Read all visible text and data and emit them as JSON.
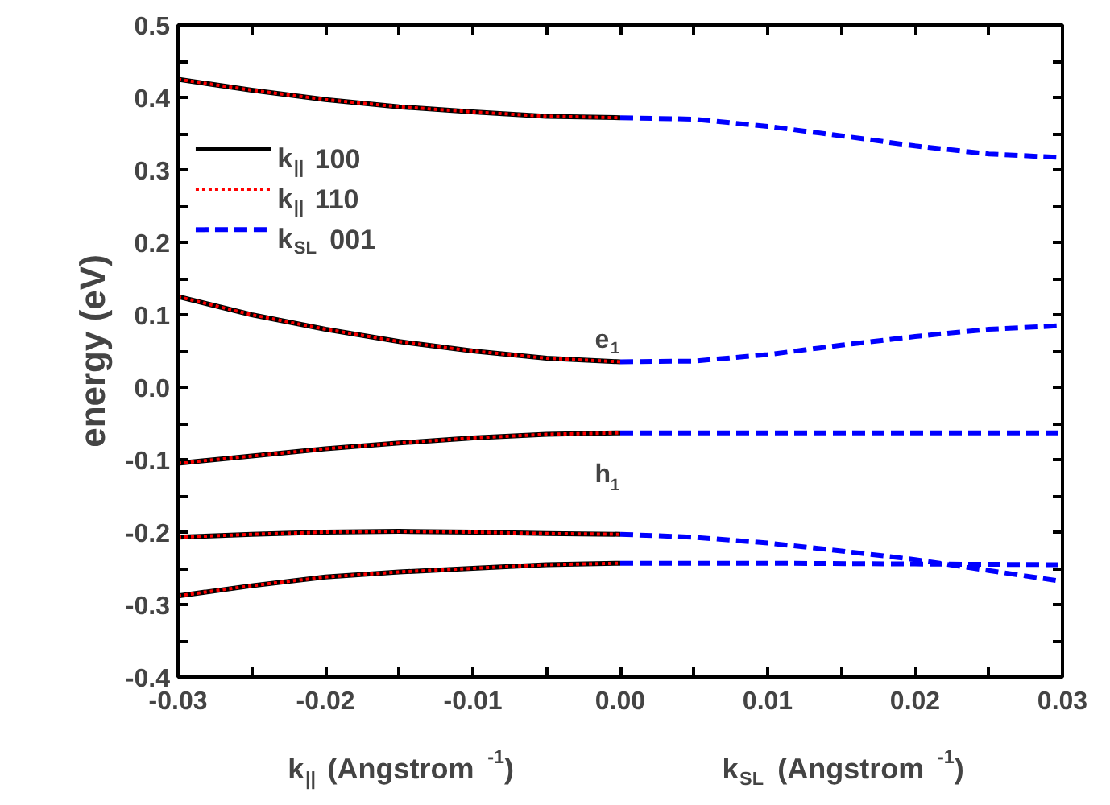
{
  "chart_data": {
    "type": "line",
    "xlabel": "k$_{||}$ (Angstrom$^{-1}$)",
    "ylabel": "energy (eV)",
    "annotations": [
      "k$_{SL}$ (Angstrom$^{-1}$)",
      {
        "text": "e$_{1}$",
        "x": 0,
        "y": 0.035
      },
      {
        "text": "h$_{1}$",
        "x": 0,
        "y": -0.063
      }
    ],
    "xlim": [
      -0.03,
      0.03
    ],
    "xticks": [
      -0.03,
      {
        "value": -0.025,
        "label": null
      },
      -0.02,
      {
        "value": -0.015,
        "label": null
      },
      -0.01,
      {
        "value": -0.005,
        "label": null
      },
      {
        "value": 0,
        "label": "0.00"
      },
      {
        "value": 0.005,
        "label": null
      },
      0.01,
      {
        "value": 0.015,
        "label": null
      },
      0.02,
      {
        "value": 0.025,
        "label": null
      },
      0.03
    ],
    "ylim": [
      -0.4,
      0.5
    ],
    "yticks": [
      -0.4,
      {
        "value": -0.35,
        "label": null
      },
      -0.3,
      {
        "value": -0.25,
        "label": null
      },
      -0.2,
      {
        "value": -0.15,
        "label": null
      },
      -0.1,
      {
        "value": -0.05,
        "label": null
      },
      {
        "value": 0,
        "label": "0.0"
      },
      {
        "value": 0.05,
        "label": null
      },
      0.1,
      {
        "value": 0.15,
        "label": null
      },
      0.2,
      {
        "value": 0.25,
        "label": null
      },
      0.3,
      {
        "value": 0.35,
        "label": null
      },
      0.4,
      {
        "value": 0.45,
        "label": null
      },
      0.5
    ],
    "grid": false,
    "legend": "top left",
    "series": [
      {
        "name": "k$_{||}$ 100",
        "color": "#000000",
        "line_style": "solid",
        "x": [
          -0.03,
          -0.025,
          -0.02,
          -0.015,
          -0.01,
          -0.005,
          0
        ],
        "values": [
          0.425,
          0.41,
          0.397,
          0.387,
          0.38,
          0.374,
          0.372
        ]
      },
      {
        "color": "#000000",
        "line_style": "solid",
        "x": [
          -0.03,
          -0.025,
          -0.02,
          -0.015,
          -0.01,
          -0.005,
          0
        ],
        "values": [
          0.125,
          0.1,
          0.08,
          0.063,
          0.05,
          0.04,
          0.035
        ]
      },
      {
        "color": "#000000",
        "line_style": "solid",
        "x": [
          -0.03,
          -0.025,
          -0.02,
          -0.015,
          -0.01,
          -0.005,
          0
        ],
        "values": [
          -0.105,
          -0.095,
          -0.085,
          -0.077,
          -0.07,
          -0.065,
          -0.063
        ]
      },
      {
        "color": "#000000",
        "line_style": "solid",
        "x": [
          -0.03,
          -0.025,
          -0.02,
          -0.015,
          -0.01,
          -0.005,
          0
        ],
        "values": [
          -0.207,
          -0.203,
          -0.2,
          -0.199,
          -0.2,
          -0.202,
          -0.203
        ]
      },
      {
        "color": "#000000",
        "line_style": "solid",
        "x": [
          -0.03,
          -0.025,
          -0.02,
          -0.015,
          -0.01,
          -0.005,
          0
        ],
        "values": [
          -0.288,
          -0.274,
          -0.262,
          -0.255,
          -0.25,
          -0.245,
          -0.243
        ]
      },
      {
        "name": "k$_{||}$ 110",
        "color": "#ff0000",
        "line_style": "dotted",
        "x": [
          -0.03,
          -0.025,
          -0.02,
          -0.015,
          -0.01,
          -0.005,
          0
        ],
        "values": [
          0.425,
          0.41,
          0.397,
          0.387,
          0.38,
          0.374,
          0.372
        ]
      },
      {
        "color": "#ff0000",
        "line_style": "dotted",
        "x": [
          -0.03,
          -0.025,
          -0.02,
          -0.015,
          -0.01,
          -0.005,
          0
        ],
        "values": [
          0.125,
          0.1,
          0.08,
          0.063,
          0.05,
          0.04,
          0.035
        ]
      },
      {
        "color": "#ff0000",
        "line_style": "dotted",
        "x": [
          -0.03,
          -0.025,
          -0.02,
          -0.015,
          -0.01,
          -0.005,
          0
        ],
        "values": [
          -0.105,
          -0.095,
          -0.085,
          -0.077,
          -0.07,
          -0.065,
          -0.063
        ]
      },
      {
        "color": "#ff0000",
        "line_style": "dotted",
        "x": [
          -0.03,
          -0.025,
          -0.02,
          -0.015,
          -0.01,
          -0.005,
          0
        ],
        "values": [
          -0.207,
          -0.203,
          -0.2,
          -0.199,
          -0.2,
          -0.202,
          -0.203
        ]
      },
      {
        "color": "#ff0000",
        "line_style": "dotted",
        "x": [
          -0.03,
          -0.025,
          -0.02,
          -0.015,
          -0.01,
          -0.005,
          0
        ],
        "values": [
          -0.288,
          -0.274,
          -0.262,
          -0.255,
          -0.25,
          -0.245,
          -0.243
        ]
      },
      {
        "name": "k$_{SL}$ 001",
        "color": "#0000ff",
        "line_style": "dashed",
        "x": [
          0,
          0.005,
          0.01,
          0.015,
          0.02,
          0.025,
          0.03
        ],
        "values": [
          0.372,
          0.37,
          0.36,
          0.347,
          0.333,
          0.322,
          0.317
        ]
      },
      {
        "color": "#0000ff",
        "line_style": "dashed",
        "x": [
          0,
          0.005,
          0.01,
          0.015,
          0.02,
          0.025,
          0.03
        ],
        "values": [
          0.035,
          0.036,
          0.045,
          0.058,
          0.07,
          0.08,
          0.085
        ]
      },
      {
        "color": "#0000ff",
        "line_style": "dashed",
        "x": [
          0,
          0.03
        ],
        "values": [
          -0.063,
          -0.063
        ]
      },
      {
        "color": "#0000ff",
        "line_style": "dashed",
        "x": [
          0,
          0.005,
          0.01,
          0.015,
          0.02,
          0.025,
          0.03
        ],
        "values": [
          -0.203,
          -0.207,
          -0.215,
          -0.226,
          -0.238,
          -0.253,
          -0.268
        ]
      },
      {
        "color": "#0000ff",
        "line_style": "dashed",
        "x": [
          0,
          0.01,
          0.02,
          0.03
        ],
        "values": [
          -0.243,
          -0.243,
          -0.244,
          -0.245
        ]
      }
    ]
  }
}
